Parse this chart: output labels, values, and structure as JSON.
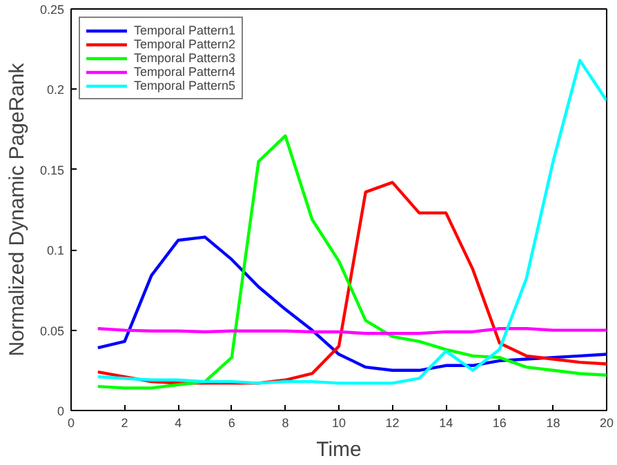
{
  "chart_data": {
    "type": "line",
    "xlabel": "Time",
    "ylabel": "Normalized Dynamic PageRank",
    "x": [
      1,
      2,
      3,
      4,
      5,
      6,
      7,
      8,
      9,
      10,
      11,
      12,
      13,
      14,
      15,
      16,
      17,
      18,
      19,
      20
    ],
    "series": [
      {
        "name": "Temporal Pattern1",
        "color": "#0000ff",
        "values": [
          0.039,
          0.043,
          0.084,
          0.106,
          0.108,
          0.094,
          0.077,
          0.063,
          0.05,
          0.035,
          0.027,
          0.025,
          0.025,
          0.028,
          0.028,
          0.031,
          0.032,
          0.033,
          0.034,
          0.035
        ]
      },
      {
        "name": "Temporal Pattern2",
        "color": "#ff0000",
        "values": [
          0.024,
          0.021,
          0.018,
          0.017,
          0.017,
          0.017,
          0.017,
          0.019,
          0.023,
          0.04,
          0.136,
          0.142,
          0.123,
          0.123,
          0.088,
          0.042,
          0.034,
          0.032,
          0.03,
          0.029
        ]
      },
      {
        "name": "Temporal Pattern3",
        "color": "#00ff00",
        "values": [
          0.015,
          0.014,
          0.014,
          0.016,
          0.018,
          0.033,
          0.155,
          0.171,
          0.119,
          0.093,
          0.056,
          0.046,
          0.043,
          0.038,
          0.034,
          0.033,
          0.027,
          0.025,
          0.023,
          0.022
        ]
      },
      {
        "name": "Temporal Pattern4",
        "color": "#ff00ff",
        "values": [
          0.051,
          0.05,
          0.0495,
          0.0495,
          0.049,
          0.0495,
          0.0495,
          0.0495,
          0.049,
          0.049,
          0.048,
          0.048,
          0.048,
          0.049,
          0.049,
          0.051,
          0.051,
          0.05,
          0.05,
          0.05
        ]
      },
      {
        "name": "Temporal Pattern5",
        "color": "#00ffff",
        "values": [
          0.021,
          0.02,
          0.019,
          0.019,
          0.018,
          0.018,
          0.017,
          0.018,
          0.018,
          0.017,
          0.017,
          0.017,
          0.02,
          0.037,
          0.025,
          0.038,
          0.082,
          0.155,
          0.218,
          0.193
        ]
      }
    ],
    "xlim": [
      0,
      20
    ],
    "ylim": [
      0,
      0.25
    ],
    "xticks": [
      0,
      2,
      4,
      6,
      8,
      10,
      12,
      14,
      16,
      18,
      20
    ],
    "yticks": [
      0,
      0.05,
      0.1,
      0.15,
      0.2,
      0.25
    ],
    "legend": "top left",
    "grid": false,
    "line_style": "solid",
    "marker": "none"
  }
}
